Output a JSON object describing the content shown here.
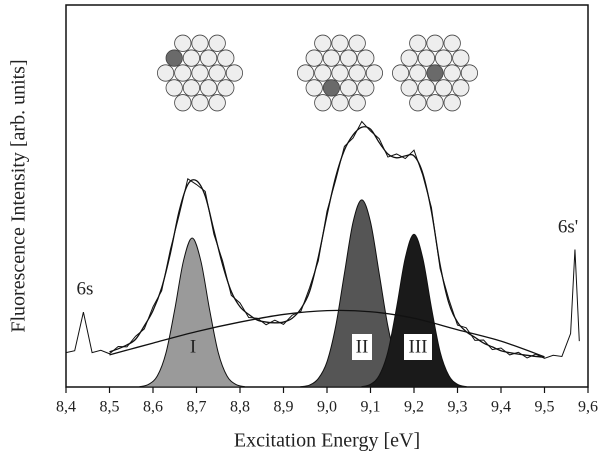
{
  "chart_data": {
    "type": "spectrum",
    "x_label": "Excitation Energy [eV]",
    "y_label": "Fluorescence Intensity [arb. units]",
    "xlim": [
      8.4,
      9.6
    ],
    "ylim": [
      0,
      100
    ],
    "xticks": [
      {
        "value": 8.4,
        "label": "8,4"
      },
      {
        "value": 8.5,
        "label": "8,5"
      },
      {
        "value": 8.6,
        "label": "8,6"
      },
      {
        "value": 8.7,
        "label": "8,7"
      },
      {
        "value": 8.8,
        "label": "8,8"
      },
      {
        "value": 8.9,
        "label": "8,9"
      },
      {
        "value": 9.0,
        "label": "9,0"
      },
      {
        "value": 9.1,
        "label": "9,1"
      },
      {
        "value": 9.2,
        "label": "9,2"
      },
      {
        "value": 9.3,
        "label": "9,3"
      },
      {
        "value": 9.4,
        "label": "9,4"
      },
      {
        "value": 9.5,
        "label": "9,5"
      },
      {
        "value": 9.6,
        "label": "9,6"
      }
    ],
    "annotations": [
      "6s",
      "6s'"
    ],
    "peaks": [
      {
        "label": "I",
        "color": "#9a9a9a",
        "x": [
          8.57,
          8.59,
          8.61,
          8.63,
          8.65,
          8.67,
          8.69,
          8.71,
          8.73,
          8.75,
          8.77,
          8.79,
          8.81
        ],
        "values": [
          0.1,
          0.7,
          2.9,
          9,
          20.3,
          33,
          39,
          33,
          20.3,
          9,
          2.9,
          0.7,
          0.1
        ]
      },
      {
        "label": "II",
        "color": "#555555",
        "x": [
          8.94,
          8.96,
          8.98,
          9.0,
          9.02,
          9.04,
          9.06,
          9.08,
          9.1,
          9.12,
          9.14,
          9.16,
          9.18,
          9.2,
          9.22
        ],
        "values": [
          0.1,
          0.5,
          2.2,
          6.6,
          15.9,
          29.7,
          43.2,
          49,
          43.2,
          29.7,
          15.9,
          6.6,
          2.2,
          0.5,
          0.1
        ]
      },
      {
        "label": "III",
        "color": "#1a1a1a",
        "x": [
          9.08,
          9.1,
          9.12,
          9.14,
          9.16,
          9.18,
          9.2,
          9.22,
          9.24,
          9.26,
          9.28,
          9.3,
          9.32
        ],
        "values": [
          0.1,
          0.7,
          3,
          9.2,
          20.8,
          33.8,
          40,
          33.8,
          20.8,
          9.2,
          3,
          0.7,
          0.1
        ]
      }
    ],
    "background": {
      "color": "#111111",
      "x": [
        8.5,
        8.6,
        8.7,
        8.8,
        8.9,
        9.0,
        9.1,
        9.2,
        9.3,
        9.4,
        9.5
      ],
      "values": [
        8.4,
        11.5,
        14.5,
        17,
        19,
        20,
        19.7,
        18,
        15,
        12,
        7.9
      ]
    },
    "fit": {
      "color": "#111111",
      "x": [
        8.5,
        8.52,
        8.54,
        8.56,
        8.58,
        8.6,
        8.62,
        8.64,
        8.66,
        8.68,
        8.7,
        8.72,
        8.74,
        8.76,
        8.78,
        8.8,
        8.82,
        8.84,
        8.86,
        8.88,
        8.9,
        8.92,
        8.94,
        8.96,
        8.98,
        9.0,
        9.02,
        9.04,
        9.06,
        9.08,
        9.1,
        9.12,
        9.14,
        9.16,
        9.18,
        9.2,
        9.22,
        9.24,
        9.26,
        9.28,
        9.3,
        9.32,
        9.34,
        9.36,
        9.38,
        9.4,
        9.42,
        9.44,
        9.46,
        9.48,
        9.5
      ],
      "values": [
        9.2,
        10,
        11,
        12.5,
        16,
        20,
        26,
        35,
        46,
        53,
        54,
        50,
        41,
        32,
        25,
        21,
        19,
        17.5,
        17,
        16.8,
        17,
        18,
        20.5,
        25,
        34,
        45,
        55,
        62,
        66,
        68,
        67.5,
        64,
        61,
        60,
        60.5,
        60.5,
        56,
        46,
        32,
        22,
        17,
        14.5,
        13,
        11.5,
        10.5,
        9.5,
        9,
        8.6,
        8.3,
        8,
        7.8
      ]
    },
    "spectrum": {
      "color": "#111111",
      "x": [
        8.4,
        8.42,
        8.44,
        8.46,
        8.48,
        8.5,
        8.52,
        8.54,
        8.56,
        8.58,
        8.6,
        8.62,
        8.64,
        8.66,
        8.68,
        8.7,
        8.72,
        8.74,
        8.76,
        8.78,
        8.8,
        8.82,
        8.84,
        8.86,
        8.88,
        8.9,
        8.92,
        8.94,
        8.96,
        8.98,
        9.0,
        9.02,
        9.04,
        9.06,
        9.08,
        9.1,
        9.12,
        9.14,
        9.16,
        9.18,
        9.2,
        9.22,
        9.24,
        9.26,
        9.28,
        9.3,
        9.32,
        9.34,
        9.36,
        9.38,
        9.4,
        9.42,
        9.44,
        9.46,
        9.48,
        9.5,
        9.52,
        9.54,
        9.56,
        9.57,
        9.58
      ],
      "values": [
        9,
        9.5,
        19.6,
        9,
        9.6,
        8.7,
        10.6,
        10.5,
        13.3,
        15.2,
        21,
        25.2,
        36,
        45,
        54.5,
        53,
        51.2,
        40,
        33,
        24,
        22,
        18.2,
        18,
        16.3,
        17.5,
        16.4,
        18.8,
        19.8,
        26,
        33,
        46,
        54.2,
        63,
        65.2,
        69.5,
        67,
        65,
        60.2,
        61,
        59.8,
        62,
        55.5,
        47,
        31,
        23,
        16.2,
        15.5,
        12.2,
        12.3,
        9.8,
        10.2,
        8.4,
        9.1,
        7.6,
        8.6,
        7.5,
        8.3,
        8,
        14,
        36,
        12
      ]
    }
  }
}
